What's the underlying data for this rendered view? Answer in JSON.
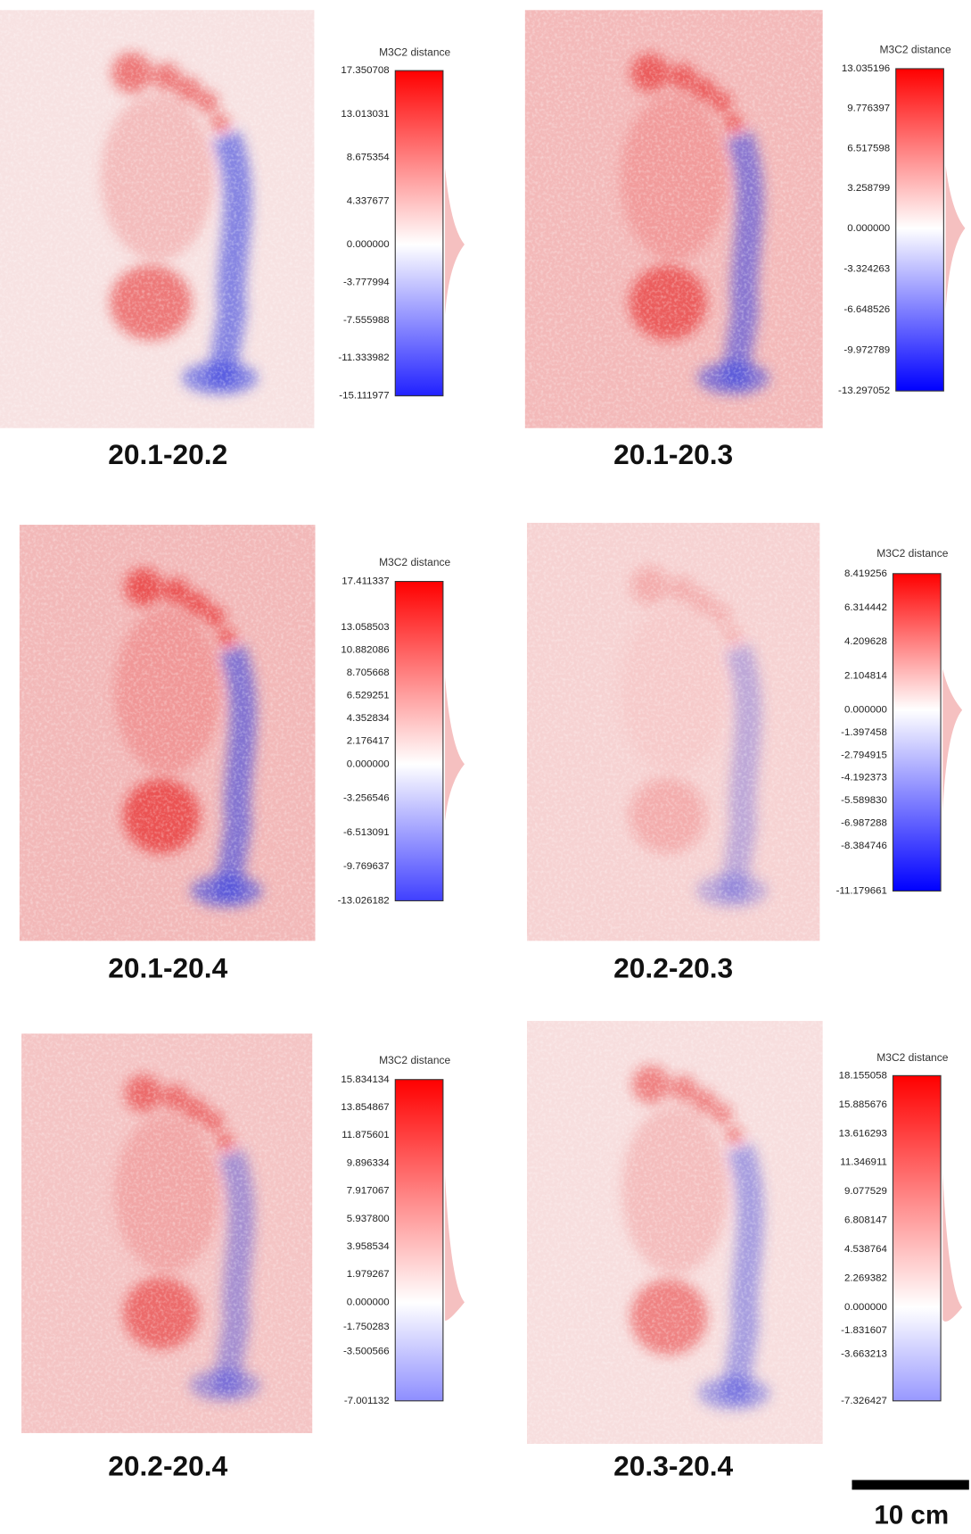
{
  "panels": [
    {
      "caption": "20.1-20.2",
      "legend_title": "M3C2 distance",
      "ticks": [
        "17.350708",
        "13.013031",
        "8.675354",
        "4.337677",
        "0.000000",
        "-3.777994",
        "-7.555988",
        "-11.333982",
        "-15.111977"
      ]
    },
    {
      "caption": "20.1-20.3",
      "legend_title": "M3C2 distance",
      "ticks": [
        "13.035196",
        "9.776397",
        "6.517598",
        "3.258799",
        "0.000000",
        "-3.324263",
        "-6.648526",
        "-9.972789",
        "-13.297052"
      ]
    },
    {
      "caption": "20.1-20.4",
      "legend_title": "M3C2 distance",
      "ticks": [
        "17.411337",
        "13.058503",
        "10.882086",
        "8.705668",
        "6.529251",
        "4.352834",
        "2.176417",
        "0.000000",
        "-3.256546",
        "-6.513091",
        "-9.769637",
        "-13.026182"
      ]
    },
    {
      "caption": "20.2-20.3",
      "legend_title": "M3C2 distance",
      "ticks": [
        "8.419256",
        "6.314442",
        "4.209628",
        "2.104814",
        "0.000000",
        "-1.397458",
        "-2.794915",
        "-4.192373",
        "-5.589830",
        "-6.987288",
        "-8.384746",
        "-11.179661"
      ]
    },
    {
      "caption": "20.2-20.4",
      "legend_title": "M3C2 distance",
      "ticks": [
        "15.834134",
        "13.854867",
        "11.875601",
        "9.896334",
        "7.917067",
        "5.937800",
        "3.958534",
        "1.979267",
        "0.000000",
        "-1.750283",
        "-3.500566",
        "-7.001132"
      ]
    },
    {
      "caption": "20.3-20.4",
      "legend_title": "M3C2 distance",
      "ticks": [
        "18.155058",
        "15.885676",
        "13.616293",
        "11.346911",
        "9.077529",
        "6.808147",
        "4.538764",
        "2.269382",
        "0.000000",
        "-1.831607",
        "-3.663213",
        "-7.326427"
      ]
    }
  ],
  "scale_bar": {
    "label": "10 cm"
  }
}
